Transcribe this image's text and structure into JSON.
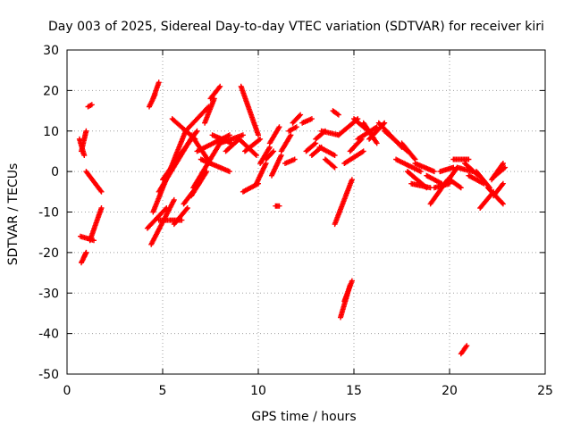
{
  "chart_data": {
    "type": "scatter",
    "title": "Day 003 of 2025, Sidereal Day-to-day VTEC variation (SDTVAR) for receiver kiri",
    "xlabel": "GPS time / hours",
    "ylabel": "SDTVAR / TECUs",
    "xlim": [
      0,
      25
    ],
    "ylim": [
      -50,
      30
    ],
    "xticks": [
      0,
      5,
      10,
      15,
      20,
      25
    ],
    "yticks": [
      30,
      20,
      10,
      0,
      -10,
      -20,
      -30,
      -40,
      -50
    ],
    "xtick_labels": [
      "0",
      "5",
      "10",
      "15",
      "20",
      "25"
    ],
    "ytick_labels": [
      "30",
      "20",
      "10",
      "0",
      "-10",
      "-20",
      "-30",
      "-40",
      "-50"
    ],
    "grid": true,
    "marker": "plus",
    "color": "#ff0000",
    "series": [
      {
        "name": "SDTVAR",
        "tracks": [
          {
            "x": [
              0.7,
              1.4
            ],
            "y": [
              -16,
              -17
            ]
          },
          {
            "x": [
              0.75,
              1.0
            ],
            "y": [
              -22.5,
              -20
            ]
          },
          {
            "x": [
              0.9,
              1.0
            ],
            "y": [
              -21,
              -20
            ]
          },
          {
            "x": [
              0.65,
              0.9
            ],
            "y": [
              8,
              4
            ]
          },
          {
            "x": [
              0.75,
              1.0
            ],
            "y": [
              5,
              10
            ]
          },
          {
            "x": [
              1.0,
              1.8
            ],
            "y": [
              0,
              -5
            ]
          },
          {
            "x": [
              1.2,
              1.8
            ],
            "y": [
              -17,
              -9
            ]
          },
          {
            "x": [
              1.1,
              1.3
            ],
            "y": [
              16,
              16.5
            ]
          },
          {
            "x": [
              4.3,
              4.6
            ],
            "y": [
              16,
              19
            ]
          },
          {
            "x": [
              4.5,
              4.8
            ],
            "y": [
              18,
              22
            ]
          },
          {
            "x": [
              4.2,
              5.2
            ],
            "y": [
              -14,
              -9
            ]
          },
          {
            "x": [
              4.4,
              5.6
            ],
            "y": [
              -18,
              -7
            ]
          },
          {
            "x": [
              4.8,
              6.0
            ],
            "y": [
              -12,
              -12
            ]
          },
          {
            "x": [
              4.5,
              6.2
            ],
            "y": [
              -10,
              10
            ]
          },
          {
            "x": [
              4.8,
              6.6
            ],
            "y": [
              -5,
              9
            ]
          },
          {
            "x": [
              5.0,
              6.8
            ],
            "y": [
              -2,
              10
            ]
          },
          {
            "x": [
              5.5,
              6.7
            ],
            "y": [
              13,
              8
            ]
          },
          {
            "x": [
              6.2,
              7.4
            ],
            "y": [
              10,
              16
            ]
          },
          {
            "x": [
              6.5,
              7.5
            ],
            "y": [
              9,
              2
            ]
          },
          {
            "x": [
              5.6,
              6.3
            ],
            "y": [
              -13,
              -9
            ]
          },
          {
            "x": [
              6.1,
              6.9
            ],
            "y": [
              -8,
              -3
            ]
          },
          {
            "x": [
              6.5,
              7.3
            ],
            "y": [
              -6,
              0
            ]
          },
          {
            "x": [
              6.6,
              8.0
            ],
            "y": [
              -4,
              7
            ]
          },
          {
            "x": [
              6.8,
              8.5
            ],
            "y": [
              5,
              9
            ]
          },
          {
            "x": [
              7.2,
              7.7
            ],
            "y": [
              12,
              18
            ]
          },
          {
            "x": [
              7.5,
              8.0
            ],
            "y": [
              18,
              21
            ]
          },
          {
            "x": [
              7.0,
              8.5
            ],
            "y": [
              3,
              0
            ]
          },
          {
            "x": [
              7.6,
              8.6
            ],
            "y": [
              9,
              7
            ]
          },
          {
            "x": [
              8.0,
              9.2
            ],
            "y": [
              7,
              9
            ]
          },
          {
            "x": [
              8.3,
              9.0
            ],
            "y": [
              5,
              8
            ]
          },
          {
            "x": [
              9.1,
              10.0
            ],
            "y": [
              21,
              9
            ]
          },
          {
            "x": [
              9.0,
              9.9
            ],
            "y": [
              8,
              4
            ]
          },
          {
            "x": [
              9.2,
              10.0
            ],
            "y": [
              -5,
              -3
            ]
          },
          {
            "x": [
              9.3,
              10.1
            ],
            "y": [
              5,
              8
            ]
          },
          {
            "x": [
              9.9,
              10.4
            ],
            "y": [
              -3,
              2
            ]
          },
          {
            "x": [
              10.1,
              10.6
            ],
            "y": [
              2,
              6
            ]
          },
          {
            "x": [
              10.4,
              10.8
            ],
            "y": [
              3,
              5
            ]
          },
          {
            "x": [
              10.6,
              11.1
            ],
            "y": [
              7,
              11
            ]
          },
          {
            "x": [
              10.7,
              11.2
            ],
            "y": [
              -1,
              4
            ]
          },
          {
            "x": [
              10.9,
              11.1
            ],
            "y": [
              -8.5,
              -8.5
            ]
          },
          {
            "x": [
              11.2,
              11.7
            ],
            "y": [
              5,
              9
            ]
          },
          {
            "x": [
              11.4,
              11.9
            ],
            "y": [
              2,
              3
            ]
          },
          {
            "x": [
              11.6,
              12.0
            ],
            "y": [
              10,
              11
            ]
          },
          {
            "x": [
              11.8,
              12.2
            ],
            "y": [
              12,
              14
            ]
          },
          {
            "x": [
              12.3,
              12.8
            ],
            "y": [
              12,
              13
            ]
          },
          {
            "x": [
              12.5,
              13.0
            ],
            "y": [
              5,
              7
            ]
          },
          {
            "x": [
              12.8,
              13.3
            ],
            "y": [
              4,
              6
            ]
          },
          {
            "x": [
              13.0,
              13.5
            ],
            "y": [
              8,
              10
            ]
          },
          {
            "x": [
              13.2,
              14.0
            ],
            "y": [
              6,
              4
            ]
          },
          {
            "x": [
              13.3,
              14.2
            ],
            "y": [
              10,
              9
            ]
          },
          {
            "x": [
              13.5,
              14.0
            ],
            "y": [
              3,
              1
            ]
          },
          {
            "x": [
              13.9,
              14.2
            ],
            "y": [
              15,
              14
            ]
          },
          {
            "x": [
              14.0,
              14.9
            ],
            "y": [
              -13,
              -2
            ]
          },
          {
            "x": [
              14.3,
              14.8
            ],
            "y": [
              -36,
              -28
            ]
          },
          {
            "x": [
              14.5,
              14.9
            ],
            "y": [
              -32,
              -27
            ]
          },
          {
            "x": [
              14.2,
              15.2
            ],
            "y": [
              9,
              13
            ]
          },
          {
            "x": [
              14.5,
              15.5
            ],
            "y": [
              2,
              5
            ]
          },
          {
            "x": [
              14.8,
              15.4
            ],
            "y": [
              5,
              8
            ]
          },
          {
            "x": [
              15.0,
              16.0
            ],
            "y": [
              13,
              9
            ]
          },
          {
            "x": [
              15.2,
              16.2
            ],
            "y": [
              8,
              11
            ]
          },
          {
            "x": [
              15.5,
              16.2
            ],
            "y": [
              12,
              7
            ]
          },
          {
            "x": [
              15.8,
              16.6
            ],
            "y": [
              8,
              12
            ]
          },
          {
            "x": [
              16.3,
              17.5
            ],
            "y": [
              12,
              6
            ]
          },
          {
            "x": [
              16.6,
              17.8
            ],
            "y": [
              10,
              5
            ]
          },
          {
            "x": [
              17.2,
              18.5
            ],
            "y": [
              3,
              0
            ]
          },
          {
            "x": [
              17.5,
              18.2
            ],
            "y": [
              7,
              3
            ]
          },
          {
            "x": [
              17.8,
              18.8
            ],
            "y": [
              0,
              -4
            ]
          },
          {
            "x": [
              18.0,
              19.0
            ],
            "y": [
              -3,
              -4
            ]
          },
          {
            "x": [
              18.2,
              19.2
            ],
            "y": [
              2,
              0
            ]
          },
          {
            "x": [
              18.8,
              19.6
            ],
            "y": [
              -1,
              -3
            ]
          },
          {
            "x": [
              19.0,
              19.9
            ],
            "y": [
              -8,
              -2
            ]
          },
          {
            "x": [
              19.2,
              20.0
            ],
            "y": [
              -4,
              -3
            ]
          },
          {
            "x": [
              19.5,
              20.2
            ],
            "y": [
              0,
              1
            ]
          },
          {
            "x": [
              19.8,
              20.4
            ],
            "y": [
              -3,
              1
            ]
          },
          {
            "x": [
              20.0,
              20.6
            ],
            "y": [
              -2,
              -4
            ]
          },
          {
            "x": [
              20.2,
              21.0
            ],
            "y": [
              3,
              3
            ]
          },
          {
            "x": [
              20.4,
              21.2
            ],
            "y": [
              1,
              0
            ]
          },
          {
            "x": [
              20.6,
              20.9
            ],
            "y": [
              -45,
              -43
            ]
          },
          {
            "x": [
              20.8,
              21.5
            ],
            "y": [
              2,
              -1
            ]
          },
          {
            "x": [
              21.0,
              21.8
            ],
            "y": [
              -1,
              -3
            ]
          },
          {
            "x": [
              21.4,
              22.1
            ],
            "y": [
              0,
              -4
            ]
          },
          {
            "x": [
              21.6,
              22.3
            ],
            "y": [
              -9,
              -5
            ]
          },
          {
            "x": [
              22.0,
              22.8
            ],
            "y": [
              -4,
              -8
            ]
          },
          {
            "x": [
              22.2,
              22.8
            ],
            "y": [
              -2,
              2
            ]
          },
          {
            "x": [
              22.3,
              22.8
            ],
            "y": [
              -6,
              -3
            ]
          },
          {
            "x": [
              22.4,
              22.9
            ],
            "y": [
              -1,
              1
            ]
          }
        ]
      }
    ]
  }
}
